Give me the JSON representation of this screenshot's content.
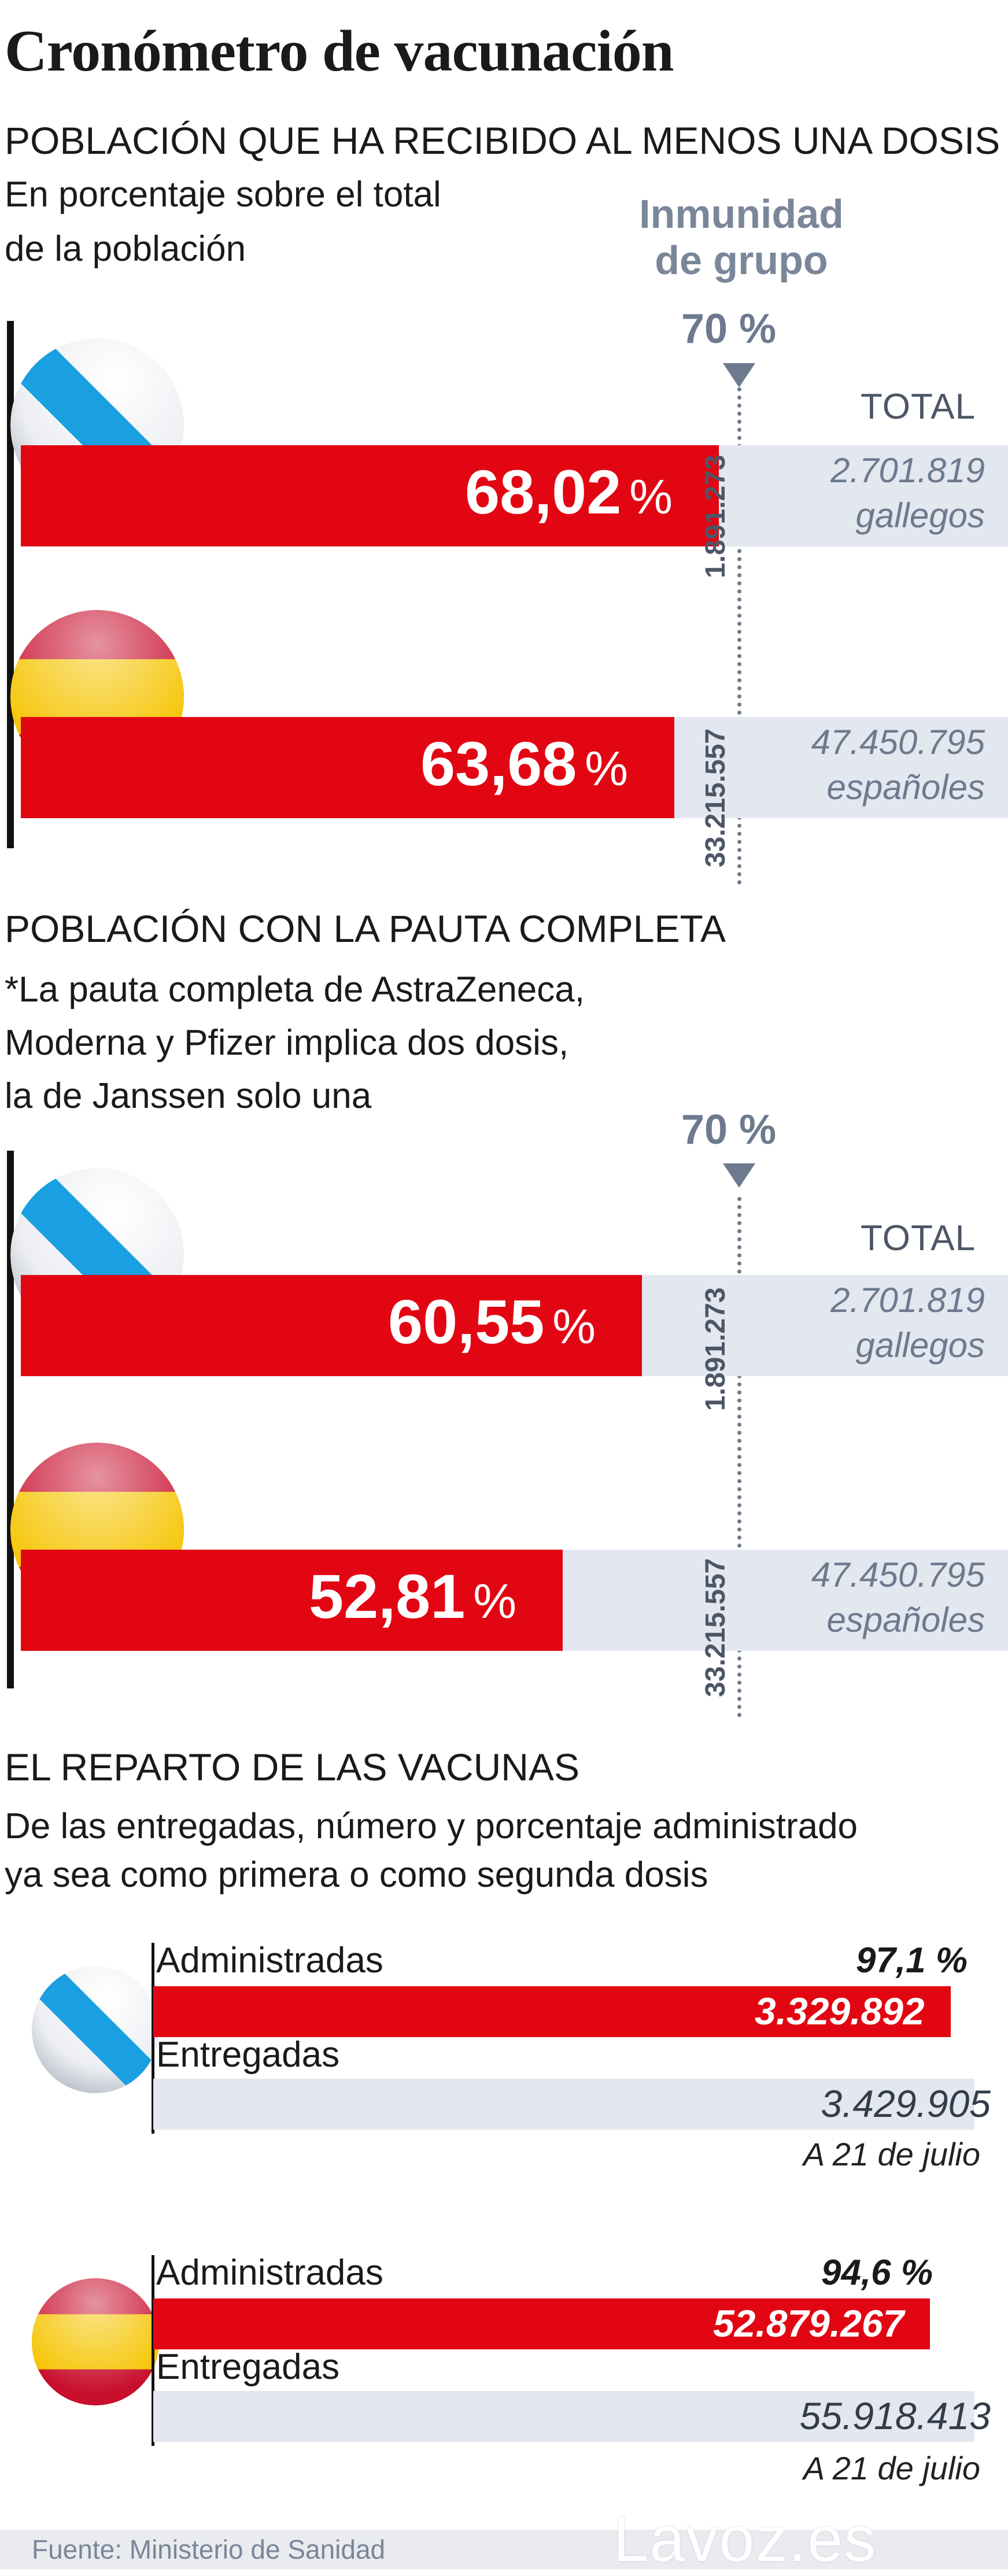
{
  "title": "Cronómetro de vacunación",
  "section1": {
    "heading": "POBLACIÓN QUE HA RECIBIDO AL MENOS UNA DOSIS",
    "sub1": "En porcentaje sobre el total",
    "sub2": "de la población",
    "herd_line1": "Inmunidad",
    "herd_line2": "de grupo",
    "threshold": "70 %",
    "total_header": "TOTAL"
  },
  "section2": {
    "heading": "POBLACIÓN CON LA PAUTA COMPLETA",
    "note1": "*La pauta completa de AstraZeneca,",
    "note2": "Moderna y Pfizer implica dos dosis,",
    "note3": "la de Janssen solo una",
    "threshold": "70 %",
    "total_header": "TOTAL"
  },
  "section3": {
    "heading": "EL REPARTO DE LAS VACUNAS",
    "sub1": "De las entregadas, número y porcentaje administrado",
    "sub2": "ya sea como primera o como segunda dosis",
    "administered_label": "Administradas",
    "delivered_label": "Entregadas"
  },
  "chart_data": [
    {
      "type": "bar",
      "title": "POBLACIÓN QUE HA RECIBIDO AL MENOS UNA DOSIS",
      "subtitle": "En porcentaje sobre el total de la población",
      "unit": "%",
      "reference_line": {
        "value": 70,
        "label": "70 %",
        "annotation": "Inmunidad de grupo"
      },
      "categories": [
        "Galicia",
        "España"
      ],
      "values": [
        68.02,
        63.68
      ],
      "labels": [
        "68,02",
        "63,68"
      ],
      "threshold_people": [
        "1.891.273",
        "33.215.557"
      ],
      "totals": [
        {
          "value": "2.701.819",
          "unit": "gallegos"
        },
        {
          "value": "47.450.795",
          "unit": "españoles"
        }
      ],
      "ylim": [
        0,
        100
      ]
    },
    {
      "type": "bar",
      "title": "POBLACIÓN CON LA PAUTA COMPLETA",
      "unit": "%",
      "reference_line": {
        "value": 70,
        "label": "70 %"
      },
      "categories": [
        "Galicia",
        "España"
      ],
      "values": [
        60.55,
        52.81
      ],
      "labels": [
        "60,55",
        "52,81"
      ],
      "threshold_people": [
        "1.891.273",
        "33.215.557"
      ],
      "totals": [
        {
          "value": "2.701.819",
          "unit": "gallegos"
        },
        {
          "value": "47.450.795",
          "unit": "españoles"
        }
      ],
      "ylim": [
        0,
        100
      ]
    },
    {
      "type": "bar",
      "title": "EL REPARTO DE LAS VACUNAS",
      "series": [
        {
          "name": "Administradas",
          "values": [
            3329892,
            52879267
          ],
          "labels": [
            "3.329.892",
            "52.879.267"
          ]
        },
        {
          "name": "Entregadas",
          "values": [
            3429905,
            55918413
          ],
          "labels": [
            "3.429.905",
            "55.918.413"
          ]
        }
      ],
      "categories": [
        "Galicia",
        "España"
      ],
      "percent_administered": [
        97.1,
        94.6
      ],
      "percent_labels": [
        "97,1 %",
        "94,6 %"
      ],
      "date": "A 21 de julio"
    }
  ],
  "footer": {
    "source": "Fuente: Ministerio de Sanidad",
    "brand": "Lavoz.es"
  },
  "colors": {
    "bar": "#e20613",
    "track": "#e3e7ef",
    "accent": "#6d7a8e",
    "galicia_blue": "#1a9fe0",
    "spain_red": "#c8102e",
    "spain_yellow": "#f5c400"
  }
}
